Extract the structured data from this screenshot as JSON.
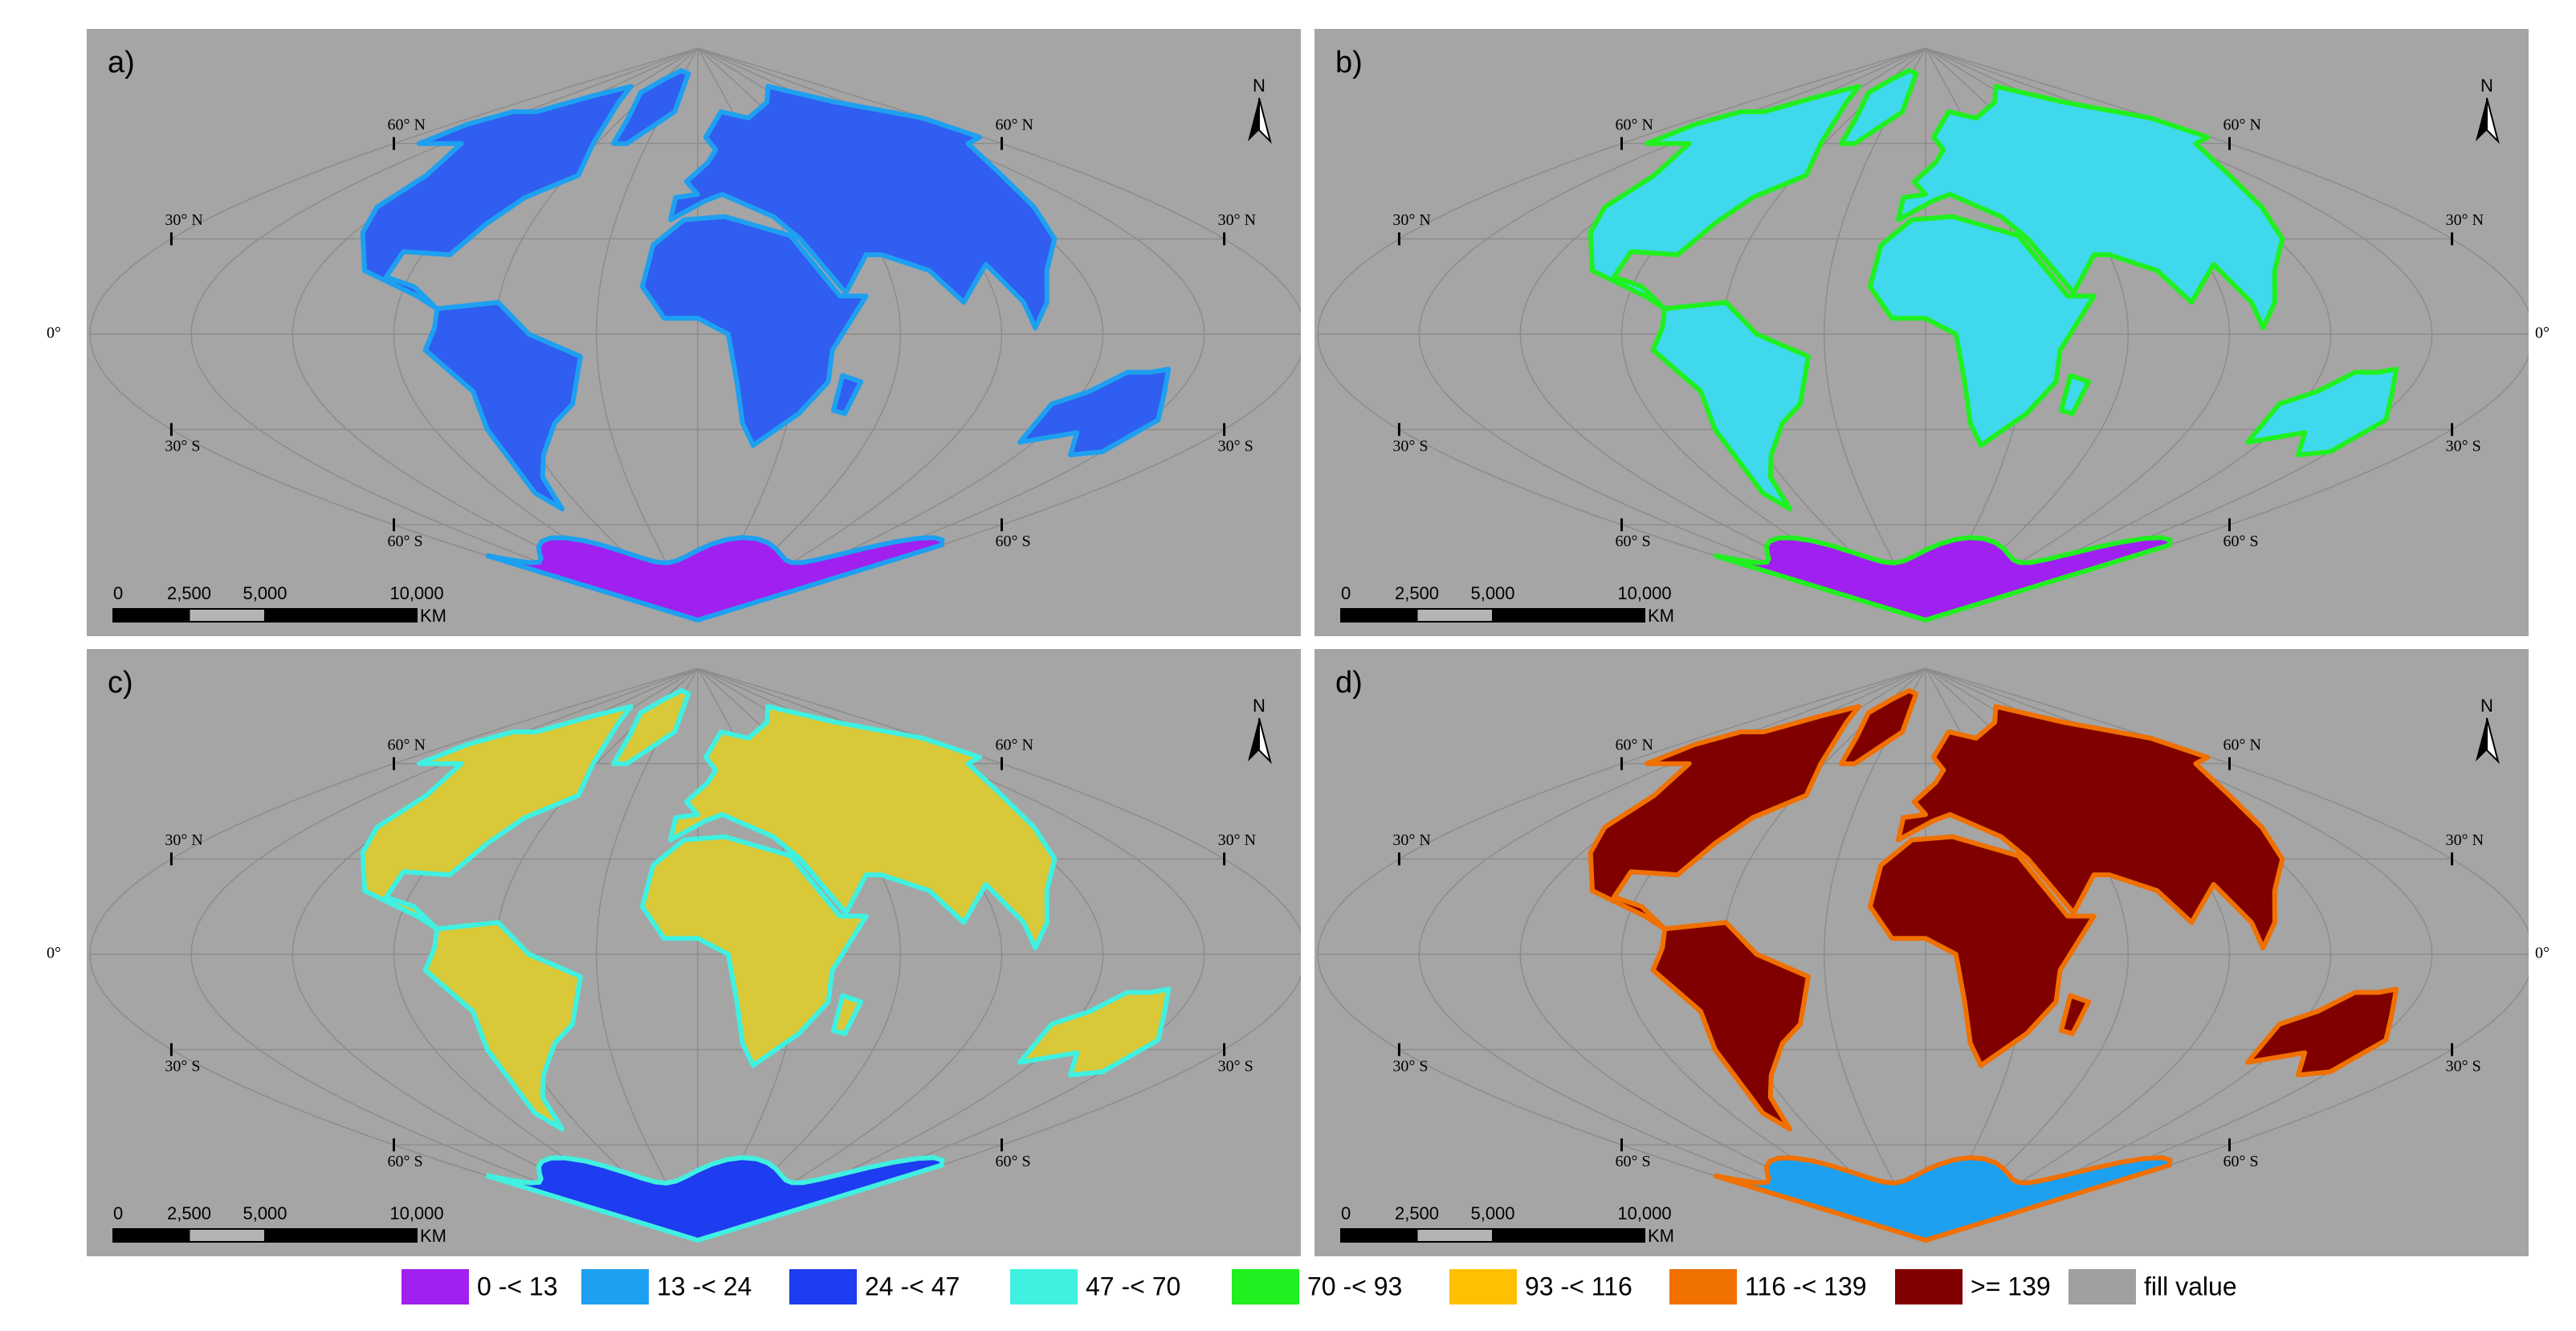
{
  "panels": [
    {
      "label": "a)"
    },
    {
      "label": "b)"
    },
    {
      "label": "c)"
    },
    {
      "label": "d)"
    }
  ],
  "north_label": "N",
  "latitude_labels": [
    "60° N",
    "30° N",
    "0°",
    "30° S",
    "60° S"
  ],
  "scale_bar": {
    "ticks": [
      "0",
      "2,500",
      "5,000",
      "10,000"
    ],
    "unit": "KM"
  },
  "legend": [
    {
      "label": "0 -< 13",
      "color": "#a020f0"
    },
    {
      "label": "13 -< 24",
      "color": "#1ea0f0"
    },
    {
      "label": "24 -< 47",
      "color": "#1e3cf0"
    },
    {
      "label": "47 -< 70",
      "color": "#40f0e0"
    },
    {
      "label": "70 -< 93",
      "color": "#20f020"
    },
    {
      "label": "93 -< 116",
      "color": "#ffc000"
    },
    {
      "label": "116 -< 139",
      "color": "#f07000"
    },
    {
      "label": ">= 139",
      "color": "#800000"
    },
    {
      "label": "fill value",
      "color": "#a0a0a0"
    }
  ]
}
